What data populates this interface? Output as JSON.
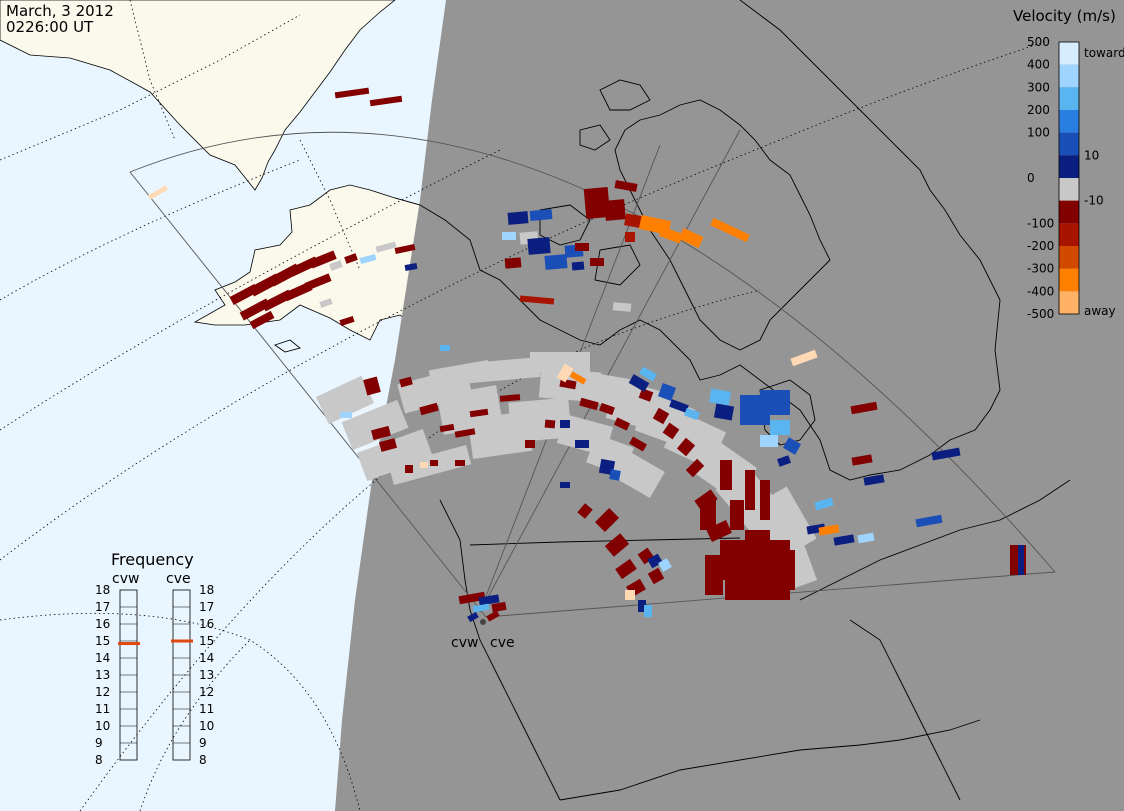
{
  "header": {
    "date": "March, 3 2012",
    "time": "0226:00 UT"
  },
  "legend": {
    "title": "Velocity (m/s)",
    "toward_label": "toward",
    "away_label": "away",
    "ticks": [
      "500",
      "400",
      "300",
      "200",
      "100",
      "10",
      "0",
      "-10",
      "-100",
      "-200",
      "-300",
      "-400",
      "-500"
    ],
    "colors": [
      "#d7ecff",
      "#9fd4ff",
      "#5ab4f0",
      "#2a7ee0",
      "#1a4fb8",
      "#0a1f80",
      "#c8c8c8",
      "#820000",
      "#a81400",
      "#d24a00",
      "#ff7f00",
      "#ffb265",
      "#ffd9b3"
    ]
  },
  "frequency": {
    "title": "Frequency",
    "radars": [
      "cvw",
      "cve"
    ],
    "scale": [
      "18",
      "17",
      "16",
      "15",
      "14",
      "13",
      "12",
      "11",
      "10",
      "9",
      "8"
    ],
    "cvw_mhz": 14.85,
    "cve_mhz": 15.0,
    "indicator_color": "#e0480e"
  },
  "map": {
    "radar_sites": [
      "cvw",
      "cve"
    ],
    "ground_scatter_color": "#c8c8c8",
    "land_day_color": "#fbf9ec",
    "ocean_day_color": "#eaf6ff",
    "night_color": "#959595"
  }
}
